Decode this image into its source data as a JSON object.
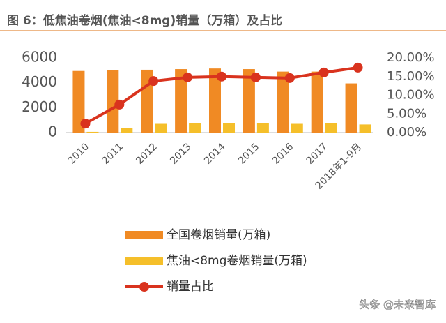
{
  "chart_data": {
    "type": "bar",
    "title": "图 6：低焦油卷烟(焦油<8mg)销量（万箱）及占比",
    "categories": [
      "2010",
      "2011",
      "2012",
      "2013",
      "2014",
      "2015",
      "2016",
      "2017",
      "2018年1-9月"
    ],
    "series": [
      {
        "name": "全国卷烟销量(万箱)",
        "color": "#f08a24",
        "values": [
          4950,
          5000,
          5050,
          5100,
          5150,
          5100,
          4900,
          4900,
          3950
        ]
      },
      {
        "name": "焦油<8mg卷烟销量(万箱)",
        "color": "#f5bf2a",
        "values": [
          60,
          380,
          700,
          750,
          780,
          750,
          700,
          750,
          650
        ]
      },
      {
        "name": "销量占比",
        "color": "#d9331e",
        "type": "line",
        "axis": "y2",
        "values": [
          2.4,
          7.5,
          13.8,
          14.8,
          15.0,
          14.8,
          14.6,
          16.1,
          17.4
        ]
      }
    ],
    "ylim": [
      0,
      6000
    ],
    "yticks": [
      0,
      2000,
      4000,
      6000
    ],
    "y2lim": [
      0,
      20
    ],
    "y2ticks": [
      {
        "value": 0,
        "label": "0.00%"
      },
      {
        "value": 5,
        "label": "5.00%"
      },
      {
        "value": 10,
        "label": "10.00%"
      },
      {
        "value": 15,
        "label": "15.00%"
      },
      {
        "value": 20,
        "label": "20.00%"
      }
    ],
    "legend": "bottom",
    "watermark": "头条 @未来智库"
  }
}
